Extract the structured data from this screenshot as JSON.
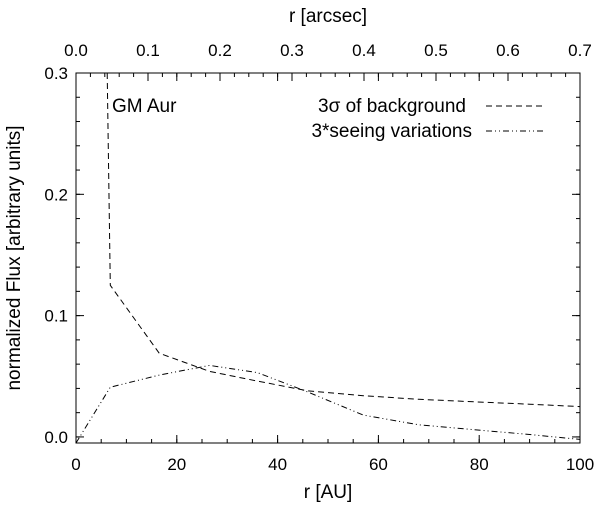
{
  "chart_data": {
    "type": "line",
    "title": "",
    "xlabel": "r [AU]",
    "ylabel": "normalized Flux [arbitrary units]",
    "x2label": "r [arcsec]",
    "xlim": [
      0,
      100
    ],
    "ylim": [
      -0.005,
      0.3
    ],
    "x2lim": [
      0.0,
      0.7
    ],
    "xticks": [
      0,
      20,
      40,
      60,
      80,
      100
    ],
    "xtick_labels": [
      "0",
      "20",
      "40",
      "60",
      "80",
      "100"
    ],
    "yticks": [
      0.0,
      0.1,
      0.2,
      0.3
    ],
    "ytick_labels": [
      "0.0",
      "0.1",
      "0.2",
      "0.3"
    ],
    "x2ticks": [
      0.0,
      0.1,
      0.2,
      0.3,
      0.4,
      0.5,
      0.6,
      0.7
    ],
    "x2tick_labels": [
      "0.0",
      "0.1",
      "0.2",
      "0.3",
      "0.4",
      "0.5",
      "0.6",
      "0.7"
    ],
    "grid": false,
    "legend_position": "top-right",
    "annotation": "GM Aur",
    "series": [
      {
        "name": "3σ of background",
        "style": "dashed",
        "x": [
          6.2,
          6.8,
          16.5,
          26.5,
          36.0,
          46.0,
          57.0,
          68.0,
          79.0,
          90.0,
          100.0
        ],
        "y": [
          0.3,
          0.125,
          0.069,
          0.054,
          0.046,
          0.038,
          0.034,
          0.031,
          0.029,
          0.027,
          0.025
        ]
      },
      {
        "name": "3*seeing variations",
        "style": "dash-dot-dot",
        "x": [
          0,
          6.8,
          16.5,
          26.5,
          36.0,
          46.0,
          57.0,
          68.0,
          79.0,
          90.0,
          100.0
        ],
        "y": [
          -0.005,
          0.041,
          0.051,
          0.059,
          0.053,
          0.037,
          0.018,
          0.01,
          0.006,
          0.002,
          -0.002
        ]
      }
    ]
  }
}
